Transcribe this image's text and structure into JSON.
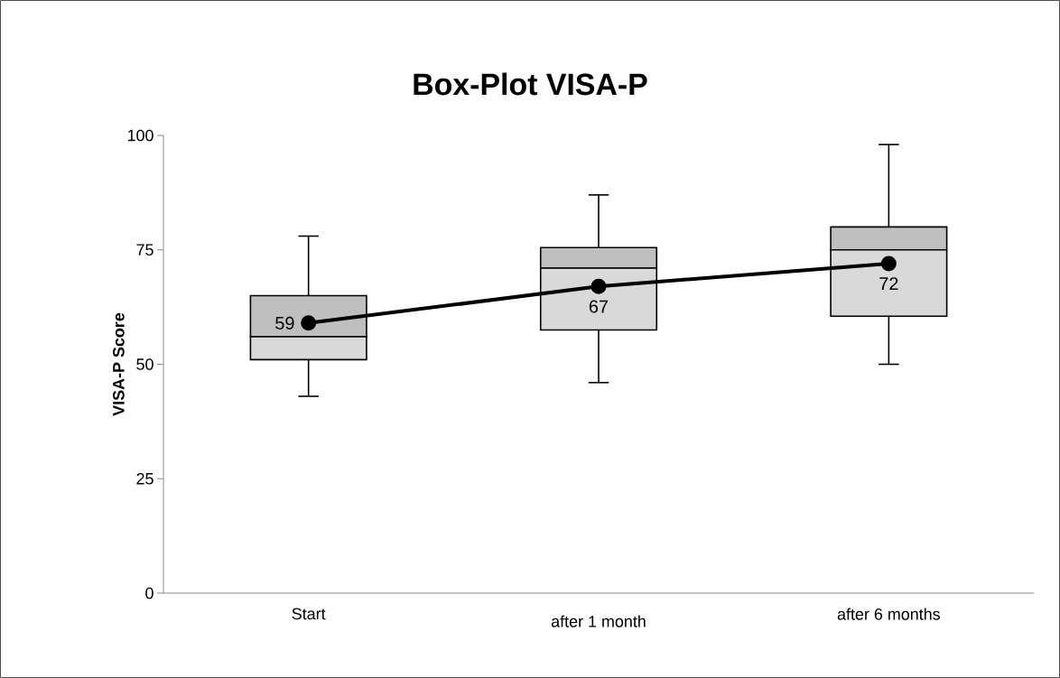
{
  "chart_data": {
    "type": "box",
    "title": "Box-Plot VISA-P",
    "ylabel": "VISA-P Score",
    "categories": [
      "Start",
      "after 1 month",
      "after 6 months"
    ],
    "ylim": [
      0,
      100
    ],
    "yticks": [
      0,
      25,
      50,
      75,
      100
    ],
    "grid": false,
    "legend": false,
    "series": [
      {
        "type": "box",
        "color": "#bfbfbf",
        "colors": [
          "#d9d9d9",
          "#d9d9d9",
          "#d9d9d9"
        ],
        "boxes": [
          {
            "low": 43,
            "q1": 51,
            "median": 56,
            "q3": 65,
            "high": 78
          },
          {
            "low": 46,
            "q1": 57.5,
            "median": 71,
            "q3": 75.5,
            "high": 87
          },
          {
            "low": 50,
            "q1": 60.5,
            "median": 75,
            "q3": 80,
            "high": 98
          }
        ]
      },
      {
        "type": "line",
        "color": "#000000",
        "marker": "circle",
        "values": [
          59,
          67,
          72
        ],
        "data_labels": true
      }
    ]
  }
}
